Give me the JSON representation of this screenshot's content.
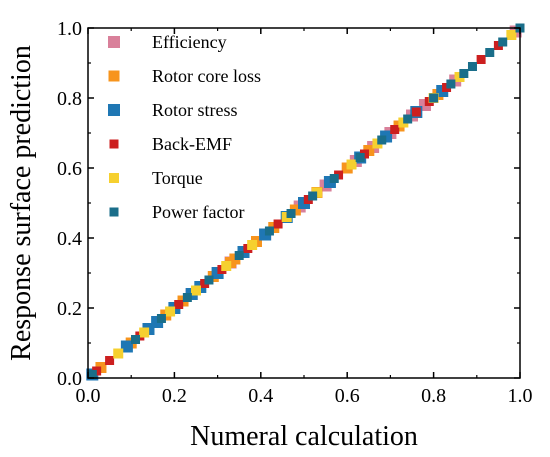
{
  "chart_data": {
    "type": "scatter",
    "title": "",
    "xlabel": "Numeral calculation",
    "ylabel": "Response surface prediction",
    "xlim": [
      0.0,
      1.0
    ],
    "ylim": [
      0.0,
      1.0
    ],
    "xticks": [
      "0.0",
      "0.2",
      "0.4",
      "0.6",
      "0.8",
      "1.0"
    ],
    "yticks": [
      "0.0",
      "0.2",
      "0.4",
      "0.6",
      "0.8",
      "1.0"
    ],
    "grid": false,
    "legend_position": "top-left",
    "series": [
      {
        "name": "Efficiency",
        "color": "#d9809a",
        "x": [
          0.24,
          0.33,
          0.41,
          0.49,
          0.55,
          0.62,
          0.66,
          0.7,
          0.75,
          0.78,
          0.85,
          0.99
        ],
        "y": [
          0.24,
          0.33,
          0.41,
          0.49,
          0.55,
          0.62,
          0.66,
          0.7,
          0.75,
          0.78,
          0.85,
          0.99
        ]
      },
      {
        "name": "Rotor core loss",
        "color": "#f7941d",
        "x": [
          0.03,
          0.1,
          0.18,
          0.22,
          0.29,
          0.33,
          0.34,
          0.39,
          0.43,
          0.48,
          0.53,
          0.6,
          0.65,
          0.72,
          0.81
        ],
        "y": [
          0.03,
          0.1,
          0.18,
          0.22,
          0.29,
          0.33,
          0.34,
          0.39,
          0.43,
          0.48,
          0.53,
          0.6,
          0.65,
          0.72,
          0.81
        ]
      },
      {
        "name": "Rotor stress",
        "color": "#1f77b4",
        "x": [
          0.01,
          0.09,
          0.14,
          0.16,
          0.2,
          0.24,
          0.26,
          0.3,
          0.36,
          0.41,
          0.46,
          0.5,
          0.56,
          0.63,
          0.69,
          0.76,
          0.82
        ],
        "y": [
          0.01,
          0.09,
          0.14,
          0.16,
          0.2,
          0.24,
          0.26,
          0.3,
          0.36,
          0.41,
          0.46,
          0.5,
          0.56,
          0.63,
          0.69,
          0.76,
          0.82
        ]
      },
      {
        "name": "Back-EMF",
        "color": "#cc1f1f",
        "x": [
          0.02,
          0.05,
          0.12,
          0.21,
          0.27,
          0.31,
          0.37,
          0.44,
          0.51,
          0.58,
          0.64,
          0.71,
          0.76,
          0.79,
          0.83,
          0.91,
          0.95
        ],
        "y": [
          0.02,
          0.05,
          0.12,
          0.21,
          0.27,
          0.31,
          0.37,
          0.44,
          0.51,
          0.58,
          0.64,
          0.71,
          0.76,
          0.79,
          0.83,
          0.91,
          0.95
        ]
      },
      {
        "name": "Torque",
        "color": "#f6d02f",
        "x": [
          0.07,
          0.13,
          0.19,
          0.25,
          0.32,
          0.38,
          0.46,
          0.53,
          0.61,
          0.67,
          0.73,
          0.8,
          0.86,
          0.98
        ],
        "y": [
          0.07,
          0.13,
          0.19,
          0.25,
          0.32,
          0.38,
          0.46,
          0.53,
          0.61,
          0.67,
          0.73,
          0.8,
          0.86,
          0.98
        ]
      },
      {
        "name": "Power factor",
        "color": "#1a6e8a",
        "x": [
          0.01,
          0.11,
          0.17,
          0.23,
          0.28,
          0.35,
          0.42,
          0.47,
          0.52,
          0.57,
          0.63,
          0.68,
          0.74,
          0.8,
          0.84,
          0.87,
          0.89,
          0.93,
          0.96,
          1.0
        ],
        "y": [
          0.01,
          0.11,
          0.17,
          0.23,
          0.28,
          0.35,
          0.42,
          0.47,
          0.52,
          0.57,
          0.63,
          0.68,
          0.74,
          0.8,
          0.84,
          0.87,
          0.89,
          0.93,
          0.96,
          1.0
        ]
      }
    ]
  }
}
